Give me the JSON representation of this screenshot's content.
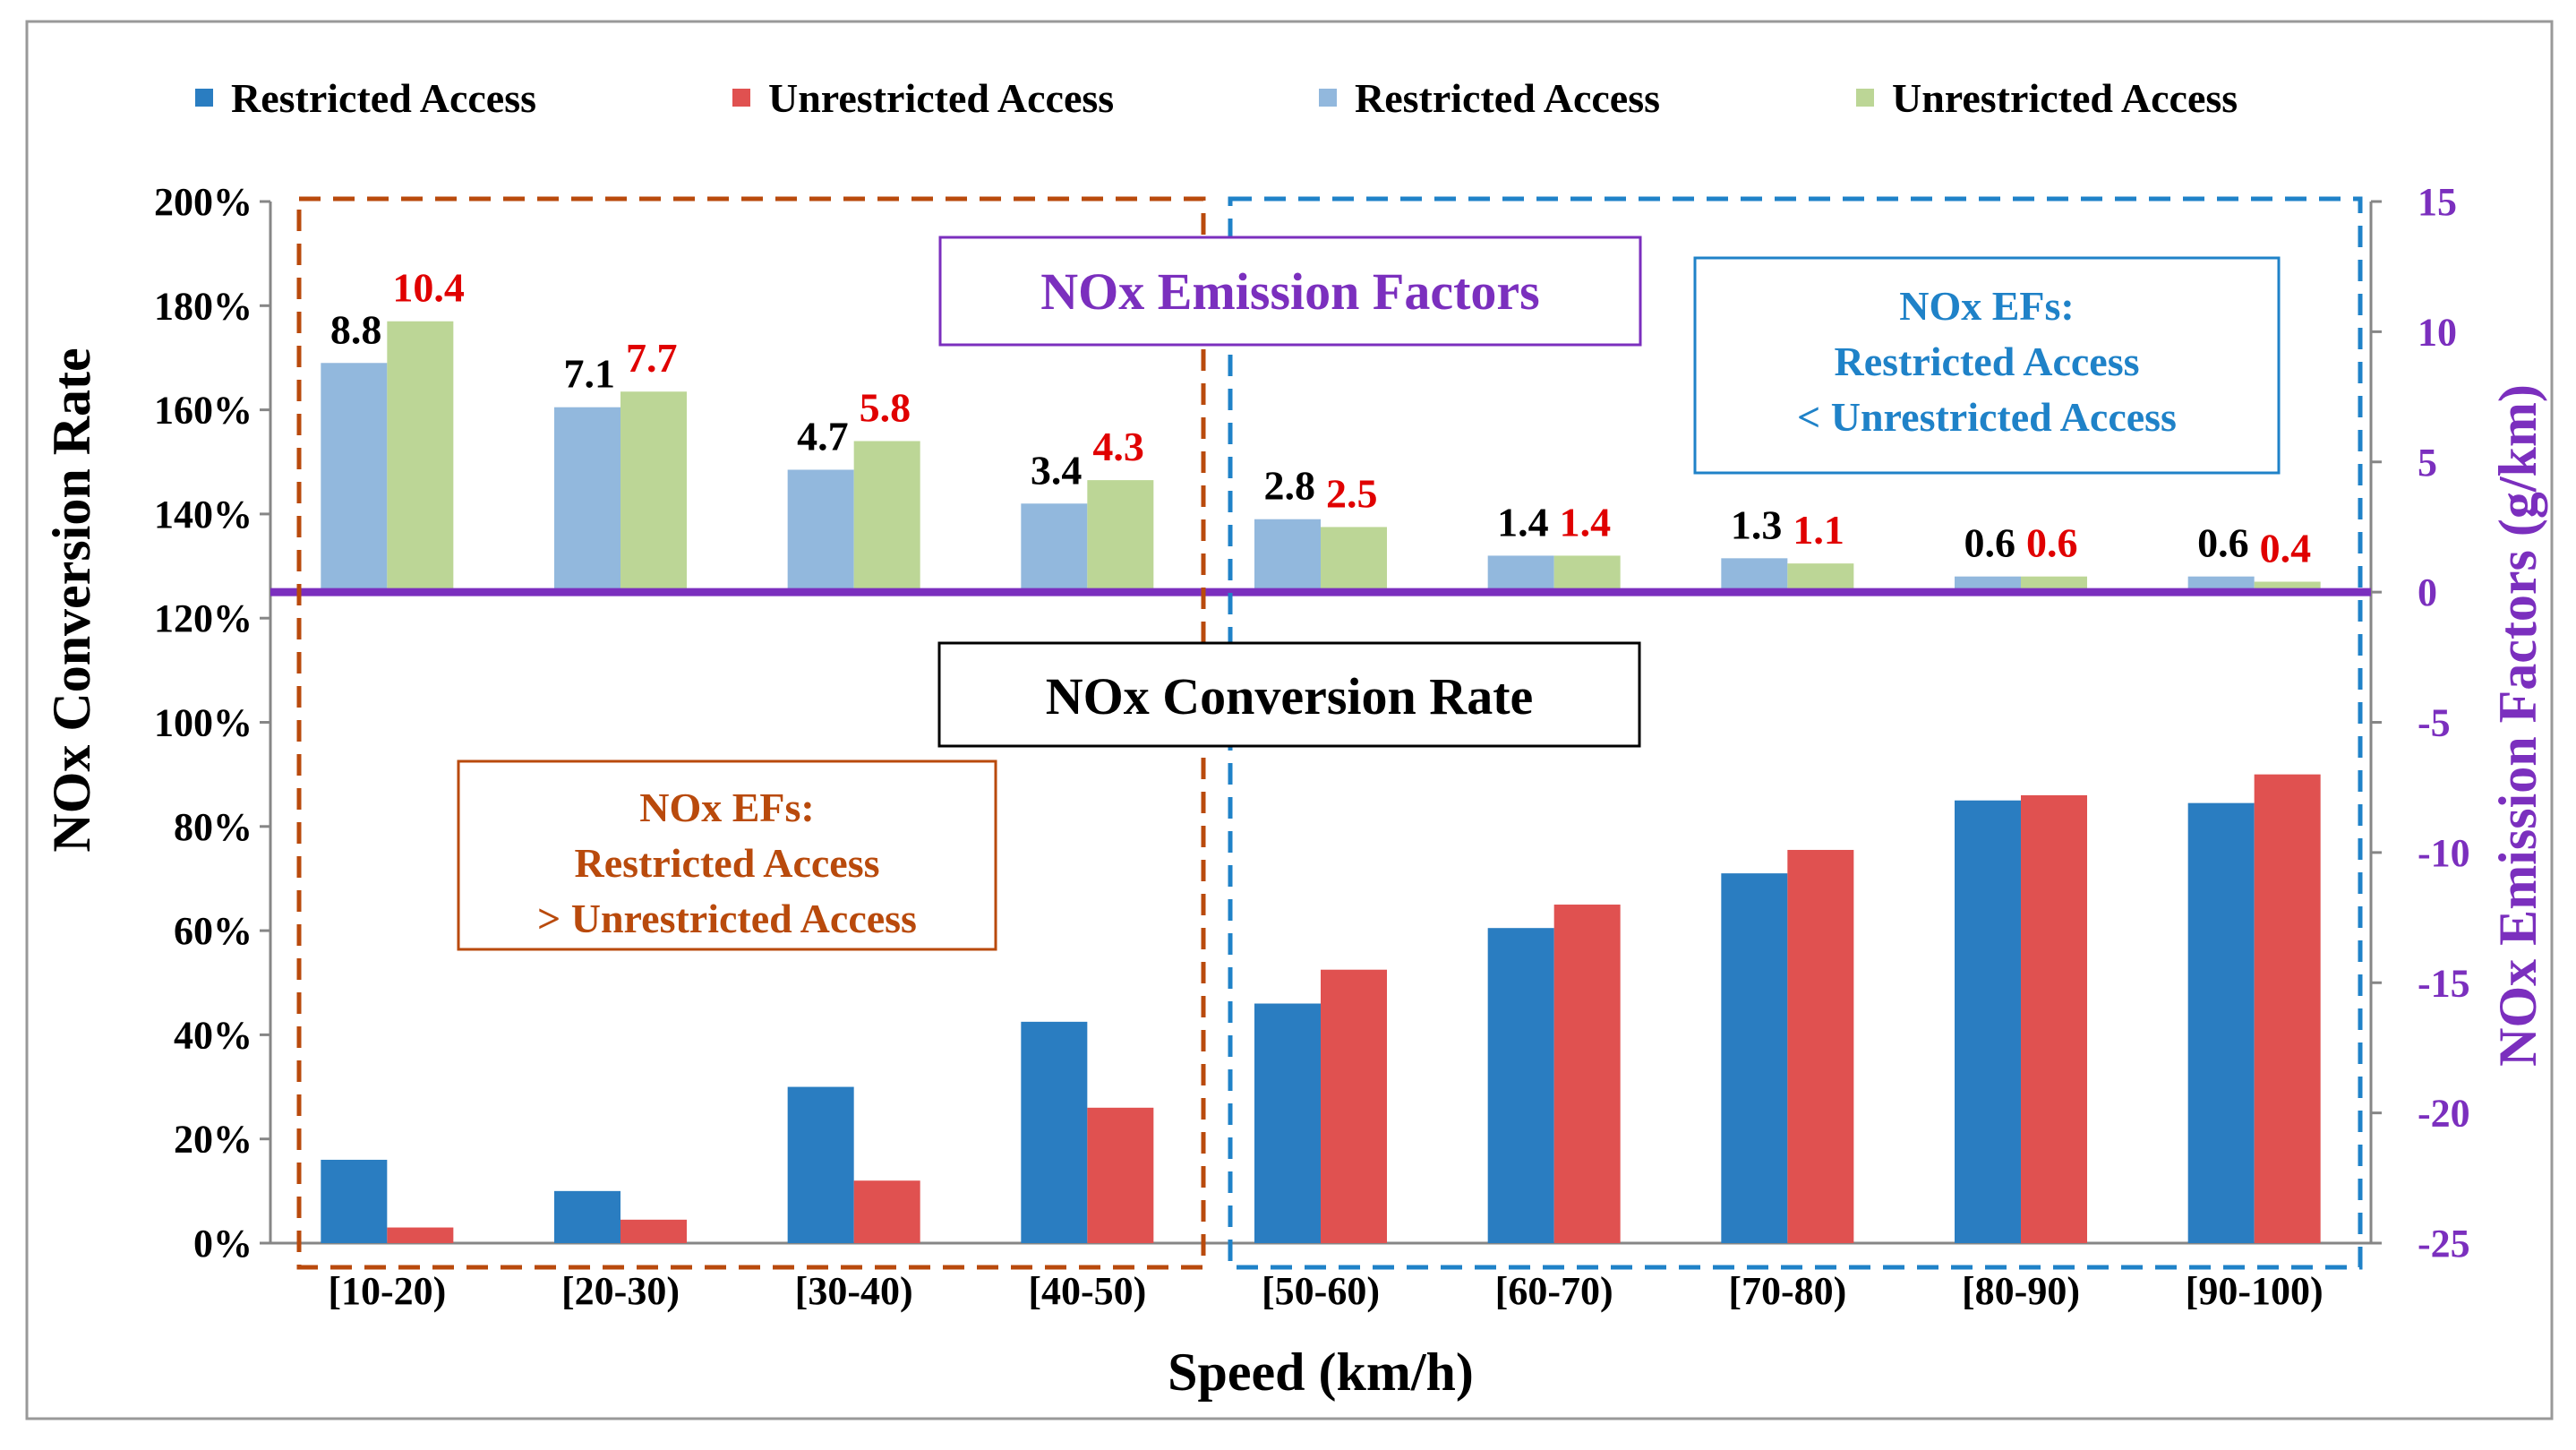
{
  "colors": {
    "rate_restricted": "#2a7dc1",
    "rate_unrestricted": "#e05150",
    "ef_restricted": "#92b8dd",
    "ef_unrestricted": "#bcd696",
    "ef_label_restricted": "#000000",
    "ef_label_unrestricted": "#e00000",
    "zero_line": "#7b2fbe",
    "orange_box": "#b94a0c",
    "blue_box": "#1f82c8",
    "purple_text": "#7b2fbe"
  },
  "legend": [
    "Restricted Access",
    "Unrestricted Access",
    "Restricted Access",
    "Unrestricted Access"
  ],
  "annotations": {
    "ef_title": "NOx Emission Factors",
    "rate_title": "NOx Conversion Rate",
    "left_box": [
      "NOx EFs:",
      "Restricted Access",
      "> Unrestricted Access"
    ],
    "right_box": [
      "NOx EFs:",
      "Restricted Access",
      "< Unrestricted Access"
    ]
  },
  "chart_data": {
    "type": "bar",
    "xlabel": "Speed (km/h)",
    "ylabel": "NOx Conversion Rate",
    "y2label": "NOx Emission Factors (g/km)",
    "categories": [
      "[10-20)",
      "[20-30)",
      "[30-40)",
      "[40-50)",
      "[50-60)",
      "[60-70)",
      "[70-80)",
      "[80-90)",
      "[90-100)"
    ],
    "ylim": [
      0,
      200
    ],
    "yticks": [
      "0%",
      "20%",
      "40%",
      "60%",
      "80%",
      "100%",
      "120%",
      "140%",
      "160%",
      "180%",
      "200%"
    ],
    "y2lim": [
      -25,
      15
    ],
    "y2ticks": [
      "-25",
      "-20",
      "-15",
      "-10",
      "-5",
      "0",
      "5",
      "10",
      "15"
    ],
    "conversion_rate": [
      {
        "name": "Restricted Access",
        "values": [
          16,
          10,
          30,
          42.5,
          46,
          60.5,
          71,
          85,
          84.5
        ]
      },
      {
        "name": "Unrestricted Access",
        "values": [
          3,
          4.5,
          12,
          26,
          52.5,
          65,
          75.5,
          86,
          90
        ]
      }
    ],
    "emission_factors": [
      {
        "name": "Restricted Access",
        "values": [
          8.8,
          7.1,
          4.7,
          3.4,
          2.8,
          1.4,
          1.3,
          0.6,
          0.6
        ],
        "labels": [
          "8.8",
          "7.1",
          "4.7",
          "3.4",
          "2.8",
          "1.4",
          "1.3",
          "0.6",
          "0.6"
        ]
      },
      {
        "name": "Unrestricted Access",
        "values": [
          10.4,
          7.7,
          5.8,
          4.3,
          2.5,
          1.4,
          1.1,
          0.6,
          0.4
        ],
        "labels": [
          "10.4",
          "7.7",
          "5.8",
          "4.3",
          "2.5",
          "1.4",
          "1.1",
          "0.6",
          "0.4"
        ]
      }
    ]
  }
}
